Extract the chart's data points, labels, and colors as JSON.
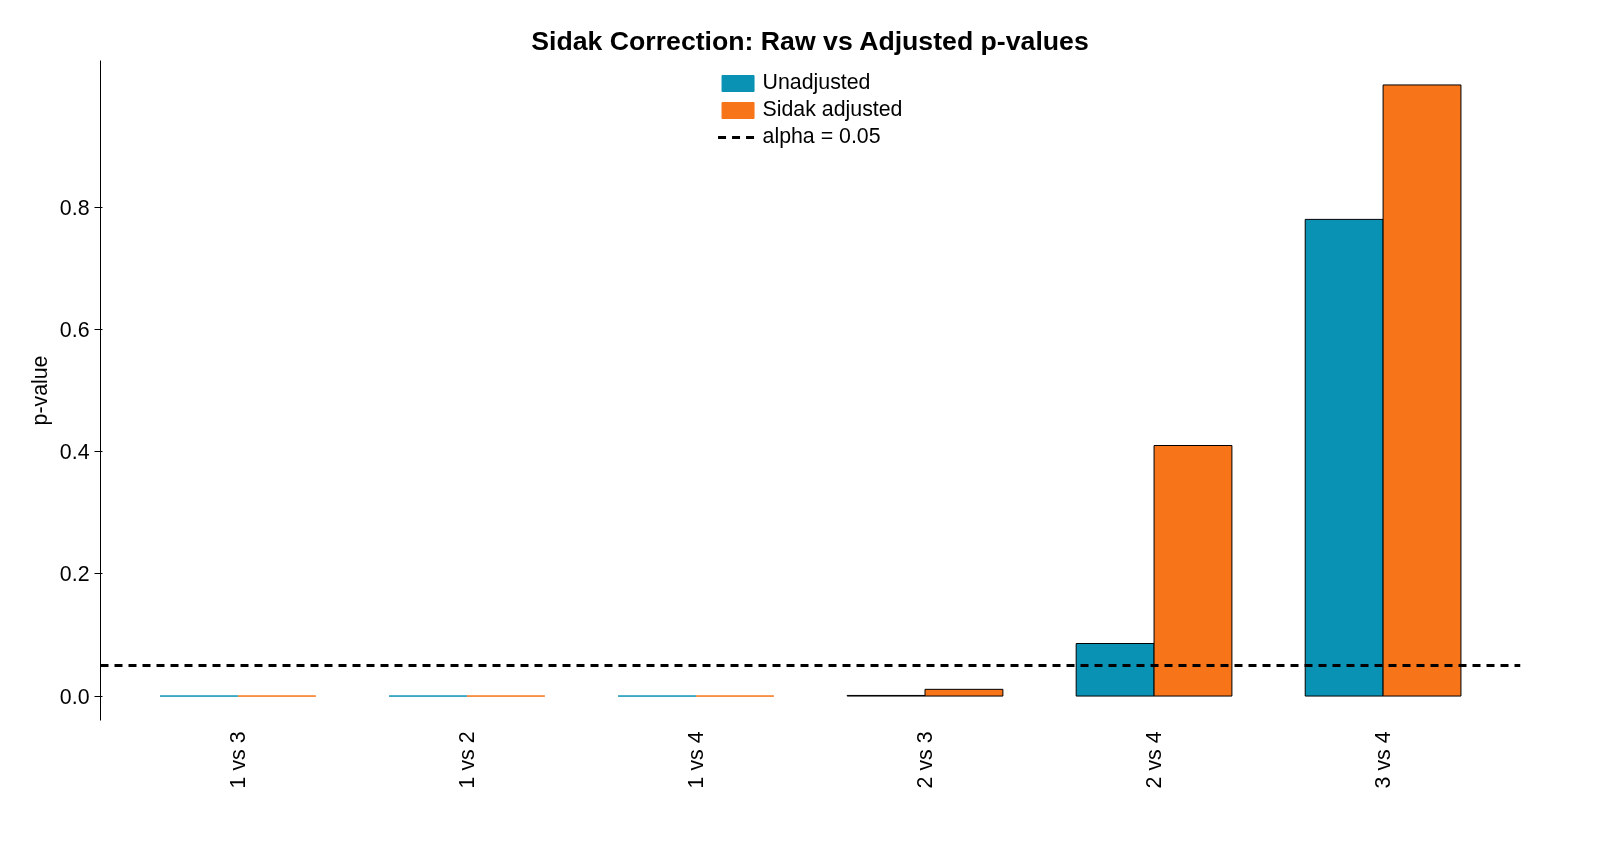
{
  "chart_data": {
    "type": "bar",
    "title": "Sidak Correction: Raw vs Adjusted p-values",
    "ylabel": "p-value",
    "categories": [
      "1 vs 3",
      "1 vs 2",
      "1 vs 4",
      "2 vs 3",
      "2 vs 4",
      "3 vs 4"
    ],
    "series": [
      {
        "name": "Unadjusted",
        "color": "#0a92b4",
        "values": [
          0,
          0,
          0,
          0.001,
          0.086,
          0.78
        ]
      },
      {
        "name": "Sidak adjusted",
        "color": "#f77418",
        "values": [
          0,
          0,
          0,
          0.011,
          0.41,
          1.0
        ]
      }
    ],
    "ylim": [
      -0.04,
      1.04
    ],
    "yticks": [
      {
        "value": 0,
        "label": "0.0"
      },
      0.2,
      0.4,
      0.6,
      0.8
    ],
    "ref_lines": [
      {
        "axis": "y",
        "value": 0.05,
        "label": "alpha = 0.05",
        "color": "#000000",
        "line_style": "dashed"
      }
    ],
    "grid": false,
    "legend": "top right"
  }
}
